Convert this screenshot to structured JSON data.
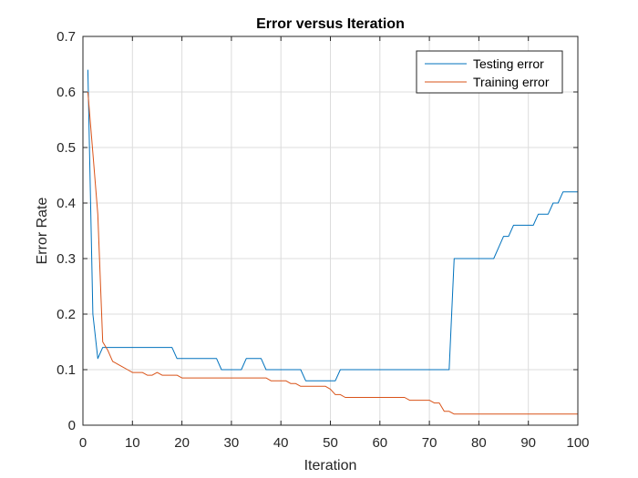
{
  "chart_data": {
    "type": "line",
    "title": "Error versus Iteration",
    "xlabel": "Iteration",
    "ylabel": "Error Rate",
    "xlim": [
      0,
      100
    ],
    "ylim": [
      0,
      0.7
    ],
    "xticks": [
      0,
      10,
      20,
      30,
      40,
      50,
      60,
      70,
      80,
      90,
      100
    ],
    "yticks": [
      0,
      0.1,
      0.2,
      0.3,
      0.4,
      0.5,
      0.6,
      0.7
    ],
    "xtick_labels": [
      "0",
      "10",
      "20",
      "30",
      "40",
      "50",
      "60",
      "70",
      "80",
      "90",
      "100"
    ],
    "ytick_labels": [
      "0",
      "0.1",
      "0.2",
      "0.3",
      "0.4",
      "0.5",
      "0.6",
      "0.7"
    ],
    "grid": true,
    "legend_position": "top-right",
    "series": [
      {
        "name": "Testing error",
        "color": "#0072BD",
        "x": [
          1,
          2,
          3,
          4,
          5,
          6,
          7,
          8,
          9,
          10,
          11,
          12,
          13,
          14,
          15,
          16,
          17,
          18,
          19,
          20,
          21,
          22,
          23,
          24,
          25,
          26,
          27,
          28,
          29,
          30,
          31,
          32,
          33,
          34,
          35,
          36,
          37,
          38,
          39,
          40,
          41,
          42,
          43,
          44,
          45,
          46,
          47,
          48,
          49,
          50,
          51,
          52,
          53,
          54,
          55,
          56,
          57,
          58,
          59,
          60,
          61,
          62,
          63,
          64,
          65,
          66,
          67,
          68,
          69,
          70,
          71,
          72,
          73,
          74,
          75,
          76,
          77,
          78,
          79,
          80,
          81,
          82,
          83,
          84,
          85,
          86,
          87,
          88,
          89,
          90,
          91,
          92,
          93,
          94,
          95,
          96,
          97,
          98,
          99,
          100
        ],
        "y": [
          0.64,
          0.2,
          0.12,
          0.14,
          0.14,
          0.14,
          0.14,
          0.14,
          0.14,
          0.14,
          0.14,
          0.14,
          0.14,
          0.14,
          0.14,
          0.14,
          0.14,
          0.14,
          0.12,
          0.12,
          0.12,
          0.12,
          0.12,
          0.12,
          0.12,
          0.12,
          0.12,
          0.1,
          0.1,
          0.1,
          0.1,
          0.1,
          0.12,
          0.12,
          0.12,
          0.12,
          0.1,
          0.1,
          0.1,
          0.1,
          0.1,
          0.1,
          0.1,
          0.1,
          0.08,
          0.08,
          0.08,
          0.08,
          0.08,
          0.08,
          0.08,
          0.1,
          0.1,
          0.1,
          0.1,
          0.1,
          0.1,
          0.1,
          0.1,
          0.1,
          0.1,
          0.1,
          0.1,
          0.1,
          0.1,
          0.1,
          0.1,
          0.1,
          0.1,
          0.1,
          0.1,
          0.1,
          0.1,
          0.1,
          0.3,
          0.3,
          0.3,
          0.3,
          0.3,
          0.3,
          0.3,
          0.3,
          0.3,
          0.32,
          0.34,
          0.34,
          0.36,
          0.36,
          0.36,
          0.36,
          0.36,
          0.38,
          0.38,
          0.38,
          0.4,
          0.4,
          0.42,
          0.42,
          0.42,
          0.42
        ]
      },
      {
        "name": "Training error",
        "color": "#D95319",
        "x": [
          1,
          2,
          3,
          4,
          5,
          6,
          7,
          8,
          9,
          10,
          11,
          12,
          13,
          14,
          15,
          16,
          17,
          18,
          19,
          20,
          21,
          22,
          23,
          24,
          25,
          26,
          27,
          28,
          29,
          30,
          31,
          32,
          33,
          34,
          35,
          36,
          37,
          38,
          39,
          40,
          41,
          42,
          43,
          44,
          45,
          46,
          47,
          48,
          49,
          50,
          51,
          52,
          53,
          54,
          55,
          56,
          57,
          58,
          59,
          60,
          61,
          62,
          63,
          64,
          65,
          66,
          67,
          68,
          69,
          70,
          71,
          72,
          73,
          74,
          75,
          76,
          77,
          78,
          79,
          80,
          81,
          82,
          83,
          84,
          85,
          86,
          87,
          88,
          89,
          90,
          91,
          92,
          93,
          94,
          95,
          96,
          97,
          98,
          99,
          100
        ],
        "y": [
          0.6,
          0.49,
          0.38,
          0.15,
          0.135,
          0.115,
          0.11,
          0.105,
          0.1,
          0.095,
          0.095,
          0.095,
          0.09,
          0.09,
          0.095,
          0.09,
          0.09,
          0.09,
          0.09,
          0.085,
          0.085,
          0.085,
          0.085,
          0.085,
          0.085,
          0.085,
          0.085,
          0.085,
          0.085,
          0.085,
          0.085,
          0.085,
          0.085,
          0.085,
          0.085,
          0.085,
          0.085,
          0.08,
          0.08,
          0.08,
          0.08,
          0.075,
          0.075,
          0.07,
          0.07,
          0.07,
          0.07,
          0.07,
          0.07,
          0.065,
          0.055,
          0.055,
          0.05,
          0.05,
          0.05,
          0.05,
          0.05,
          0.05,
          0.05,
          0.05,
          0.05,
          0.05,
          0.05,
          0.05,
          0.05,
          0.045,
          0.045,
          0.045,
          0.045,
          0.045,
          0.04,
          0.04,
          0.025,
          0.025,
          0.02,
          0.02,
          0.02,
          0.02,
          0.02,
          0.02,
          0.02,
          0.02,
          0.02,
          0.02,
          0.02,
          0.02,
          0.02,
          0.02,
          0.02,
          0.02,
          0.02,
          0.02,
          0.02,
          0.02,
          0.02,
          0.02,
          0.02,
          0.02,
          0.02,
          0.02
        ]
      }
    ]
  }
}
